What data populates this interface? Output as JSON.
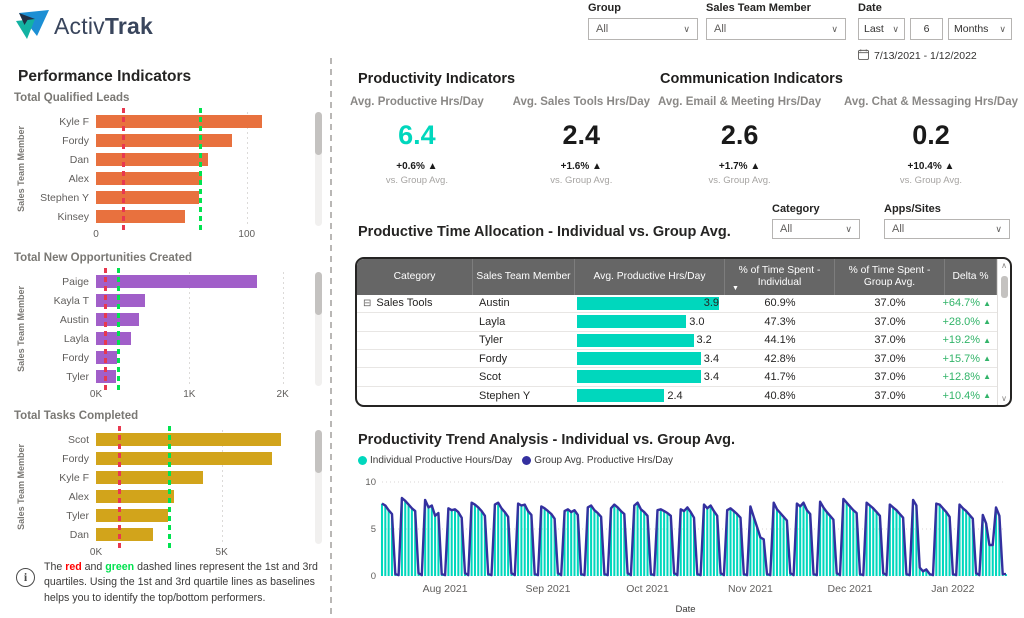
{
  "brand": {
    "name_regular": "Activ",
    "name_bold": "Trak"
  },
  "filters": {
    "group": {
      "label": "Group",
      "value": "All"
    },
    "member": {
      "label": "Sales Team Member",
      "value": "All"
    },
    "date": {
      "label": "Date",
      "mode": "Last",
      "count": "6",
      "unit": "Months",
      "range": "7/13/2021 - 1/12/2022"
    }
  },
  "left_panel": {
    "title": "Performance Indicators",
    "y_axis_label": "Sales Team Member",
    "note": {
      "p1": "The ",
      "red_word": "red",
      "p2": " and ",
      "green_word": "green",
      "p3": " dashed lines represent the 1st and 3rd quartiles. Using the 1st and 3rd quartile lines as baselines helps you to identify the top/bottom performers."
    }
  },
  "kpis": {
    "productivity_title": "Productivity Indicators",
    "communication_title": "Communication Indicators",
    "items": [
      {
        "label": "Avg. Productive Hrs/Day",
        "value": "6.4",
        "teal": true,
        "delta": "+0.6%",
        "sub": "vs. Group Avg."
      },
      {
        "label": "Avg. Sales Tools Hrs/Day",
        "value": "2.4",
        "teal": false,
        "delta": "+1.6%",
        "sub": "vs. Group Avg."
      },
      {
        "label": "Avg. Email & Meeting Hrs/Day",
        "value": "2.6",
        "teal": false,
        "delta": "+1.7%",
        "sub": "vs. Group Avg."
      },
      {
        "label": "Avg. Chat & Messaging Hrs/Day",
        "value": "0.2",
        "teal": false,
        "delta": "+10.4%",
        "sub": "vs. Group Avg."
      }
    ]
  },
  "allocation": {
    "title": "Productive Time Allocation -  Individual vs. Group Avg.",
    "category_filter": {
      "label": "Category",
      "value": "All"
    },
    "apps_filter": {
      "label": "Apps/Sites",
      "value": "All"
    },
    "columns": [
      "Category",
      "Sales Team Member",
      "Avg. Productive Hrs/Day",
      "% of Time Spent - Individual",
      "% of Time Spent - Group Avg.",
      "Delta %"
    ],
    "rows": [
      {
        "category": "Sales Tools",
        "member": "Austin",
        "hrs": 3.9,
        "individual": "60.9%",
        "group": "37.0%",
        "delta": "+64.7%"
      },
      {
        "category": "",
        "member": "Layla",
        "hrs": 3.0,
        "individual": "47.3%",
        "group": "37.0%",
        "delta": "+28.0%"
      },
      {
        "category": "",
        "member": "Tyler",
        "hrs": 3.2,
        "individual": "44.1%",
        "group": "37.0%",
        "delta": "+19.2%"
      },
      {
        "category": "",
        "member": "Fordy",
        "hrs": 3.4,
        "individual": "42.8%",
        "group": "37.0%",
        "delta": "+15.7%"
      },
      {
        "category": "",
        "member": "Scot",
        "hrs": 3.4,
        "individual": "41.7%",
        "group": "37.0%",
        "delta": "+12.8%"
      },
      {
        "category": "",
        "member": "Stephen Y",
        "hrs": 2.4,
        "individual": "40.8%",
        "group": "37.0%",
        "delta": "+10.4%"
      }
    ],
    "hrs_max": 3.9
  },
  "trend": {
    "title": "Productivity Trend Analysis - Individual vs. Group Avg.",
    "xlabel": "Date"
  },
  "chart_data": [
    {
      "type": "bar",
      "orientation": "horizontal",
      "title": "Total Qualified Leads",
      "ylabel": "Sales Team Member",
      "categories": [
        "Kyle F",
        "Fordy",
        "Dan",
        "Alex",
        "Stephen Y",
        "Kinsey"
      ],
      "values": [
        110,
        90,
        74,
        70,
        68,
        59
      ],
      "xlim": [
        0,
        130
      ],
      "xticks": [
        0,
        100
      ],
      "xtick_labels": [
        "0",
        "100"
      ],
      "quartile_1": 17,
      "quartile_3": 68,
      "bar_color": "#e8713e"
    },
    {
      "type": "bar",
      "orientation": "horizontal",
      "title": "Total New Opportunities Created",
      "ylabel": "Sales Team Member",
      "categories": [
        "Paige",
        "Kayla T",
        "Austin",
        "Layla",
        "Fordy",
        "Tyler"
      ],
      "values": [
        1730,
        520,
        460,
        380,
        220,
        210
      ],
      "xlim": [
        0,
        2100
      ],
      "xticks": [
        0,
        1000,
        2000
      ],
      "xtick_labels": [
        "0K",
        "1K",
        "2K"
      ],
      "quartile_1": 90,
      "quartile_3": 220,
      "bar_color": "#a15fc9"
    },
    {
      "type": "bar",
      "orientation": "horizontal",
      "title": "Total Tasks Completed",
      "ylabel": "Sales Team Member",
      "categories": [
        "Scot",
        "Fordy",
        "Kyle F",
        "Alex",
        "Tyler",
        "Dan"
      ],
      "values": [
        7350,
        7000,
        4250,
        3100,
        2850,
        2250
      ],
      "xlim": [
        0,
        7800
      ],
      "xticks": [
        0,
        5000
      ],
      "xtick_labels": [
        "0K",
        "5K"
      ],
      "quartile_1": 880,
      "quartile_3": 2850,
      "bar_color": "#d2a41b"
    },
    {
      "type": "bar",
      "title": "Productivity Trend Analysis - Individual vs. Group Avg.",
      "xlabel": "Date",
      "ylim": [
        0,
        10
      ],
      "yticks": [
        0,
        5,
        10
      ],
      "legend_position": "top-left",
      "series": [
        {
          "name": "Individual Productive Hours/Day",
          "type": "bar",
          "color": "#00d7bd"
        },
        {
          "name": "Group Avg. Productive Hrs/Day",
          "type": "line",
          "color": "#34309f"
        }
      ],
      "month_labels": [
        {
          "label": "Aug 2021",
          "index": 19
        },
        {
          "label": "Sep 2021",
          "index": 50
        },
        {
          "label": "Oct 2021",
          "index": 80
        },
        {
          "label": "Nov 2021",
          "index": 111
        },
        {
          "label": "Dec 2021",
          "index": 141
        },
        {
          "label": "Jan 2022",
          "index": 172
        }
      ],
      "values": [
        7.7,
        7.5,
        7.0,
        6.6,
        0.2,
        0.1,
        8.3,
        8.0,
        7.6,
        7.2,
        6.9,
        0.3,
        0.1,
        8.1,
        7.3,
        7.5,
        6.4,
        6.7,
        0.2,
        0.1,
        7.2,
        7.0,
        7.1,
        6.8,
        6.2,
        0.3,
        0.1,
        7.8,
        7.6,
        7.3,
        6.9,
        6.4,
        0.2,
        0.1,
        7.6,
        7.8,
        7.2,
        6.8,
        6.3,
        0.3,
        0.1,
        7.7,
        7.5,
        7.6,
        6.9,
        6.5,
        0.2,
        0.1,
        7.4,
        7.2,
        6.9,
        6.6,
        6.1,
        0.3,
        0.1,
        6.9,
        7.1,
        6.8,
        7.0,
        6.5,
        0.2,
        0.1,
        7.3,
        7.5,
        7.0,
        6.7,
        6.3,
        0.2,
        0.1,
        7.2,
        7.6,
        7.3,
        6.9,
        6.6,
        0.3,
        0.1,
        7.5,
        7.8,
        7.1,
        6.8,
        6.4,
        0.2,
        0.1,
        7.0,
        7.1,
        6.9,
        6.7,
        6.4,
        0.3,
        0.1,
        7.1,
        6.9,
        7.3,
        6.8,
        6.2,
        0.2,
        0.1,
        7.6,
        7.2,
        7.5,
        6.9,
        6.4,
        0.3,
        0.1,
        7.0,
        7.2,
        6.9,
        6.6,
        6.2,
        0.2,
        0.1,
        7.4,
        6.3,
        5.2,
        4.1,
        3.9,
        0.2,
        0.1,
        7.8,
        7.1,
        6.7,
        6.3,
        5.9,
        0.3,
        0.1,
        7.7,
        7.4,
        7.8,
        7.0,
        6.6,
        0.2,
        0.1,
        7.9,
        7.3,
        6.8,
        6.4,
        6.0,
        0.3,
        0.1,
        8.2,
        7.8,
        7.4,
        7.0,
        6.7,
        0.2,
        0.1,
        7.8,
        7.5,
        7.2,
        6.8,
        6.4,
        0.3,
        0.1,
        7.6,
        7.3,
        7.0,
        6.6,
        6.2,
        0.2,
        0.1,
        8.1,
        7.5,
        0.9,
        0.5,
        0.7,
        0.2,
        0.1,
        7.7,
        7.6,
        7.2,
        6.8,
        6.3,
        0.2,
        0.1,
        7.6,
        7.2,
        6.9,
        6.5,
        6.1,
        0.3,
        0.1,
        6.5,
        5.6,
        3.3,
        3.3,
        7.3,
        6.4,
        0.2,
        0.2
      ]
    }
  ],
  "colors": {
    "teal": "#00d7bd",
    "indigo": "#34309f",
    "orange": "#e8713e",
    "purple": "#a15fc9",
    "gold": "#d2a41b",
    "q1_red": "#e8384f",
    "q3_green": "#00e34f",
    "delta_green": "#32b469",
    "table_header": "#666666"
  },
  "icons": {
    "chevron_down": "∨",
    "sort_desc": "▼",
    "delta_up": "▲",
    "expand_minus": "⊟",
    "scroll_up": "∧",
    "scroll_down": "∨",
    "info": "i",
    "legend_dot": "●"
  }
}
